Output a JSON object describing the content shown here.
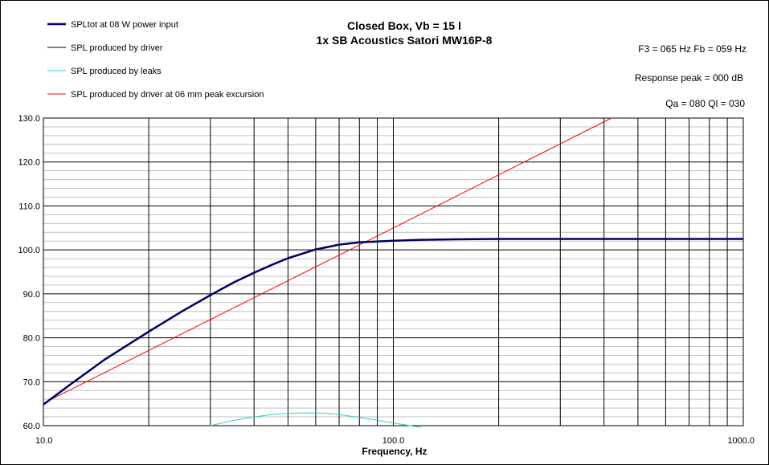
{
  "chart_data": {
    "type": "line",
    "title": "Closed Box, Vb = 15 l",
    "subtitle": "1x SB Acoustics Satori MW16P-8",
    "xlabel": "Frequency, Hz",
    "ylabel": "",
    "x_scale": "log",
    "xlim": [
      10,
      1000
    ],
    "ylim": [
      60,
      130
    ],
    "grid": true,
    "x_tick_labels": [
      "10.0",
      "100.0",
      "1000.0"
    ],
    "y_tick_labels": [
      "60.0",
      "70.0",
      "80.0",
      "90.0",
      "100.0",
      "110.0",
      "120.0",
      "130.0"
    ],
    "legend_position": "top-left",
    "annotations": [
      "F3 = 065 Hz  Fb = 059 Hz",
      "Response peak = 000  dB",
      "Qa = 080   Ql = 030"
    ],
    "series": [
      {
        "name": "SPLtot at 08 W power input",
        "color": "#000066",
        "x": [
          10,
          12,
          15,
          20,
          25,
          30,
          35,
          40,
          45,
          50,
          60,
          70,
          80,
          100,
          120,
          150,
          200,
          300,
          400,
          500,
          700,
          1000
        ],
        "y": [
          64.8,
          69.5,
          75.1,
          81.4,
          86.1,
          89.7,
          92.6,
          94.8,
          96.6,
          98.1,
          100.1,
          101.2,
          101.7,
          102.1,
          102.3,
          102.4,
          102.5,
          102.5,
          102.5,
          102.5,
          102.5,
          102.5
        ]
      },
      {
        "name": "SPL produced by driver",
        "color": "#000000",
        "x": [
          10,
          12,
          15,
          20,
          25,
          30,
          35,
          40,
          45,
          50,
          60,
          70,
          80,
          100,
          120,
          150,
          200,
          300,
          400,
          500,
          700,
          1000
        ],
        "y": [
          64.8,
          69.5,
          75.1,
          81.4,
          86.1,
          89.7,
          92.6,
          94.8,
          96.6,
          98.1,
          100.1,
          101.2,
          101.7,
          102.1,
          102.3,
          102.4,
          102.5,
          102.5,
          102.5,
          102.5,
          102.5,
          102.5
        ]
      },
      {
        "name": "SPL produced by leaks",
        "color": "#33CCCC",
        "x": [
          30,
          35,
          40,
          45,
          50,
          55,
          60,
          65,
          70,
          80,
          90,
          100,
          110,
          120
        ],
        "y": [
          60.0,
          61.2,
          62.0,
          62.5,
          62.8,
          62.9,
          62.9,
          62.8,
          62.5,
          61.9,
          61.2,
          60.6,
          60.1,
          59.6
        ]
      },
      {
        "name": "SPL produced by driver at 06 mm peak excursion",
        "color": "#FF0000",
        "x": [
          10,
          100,
          420
        ],
        "y": [
          65.1,
          105.0,
          130.0
        ]
      }
    ]
  }
}
